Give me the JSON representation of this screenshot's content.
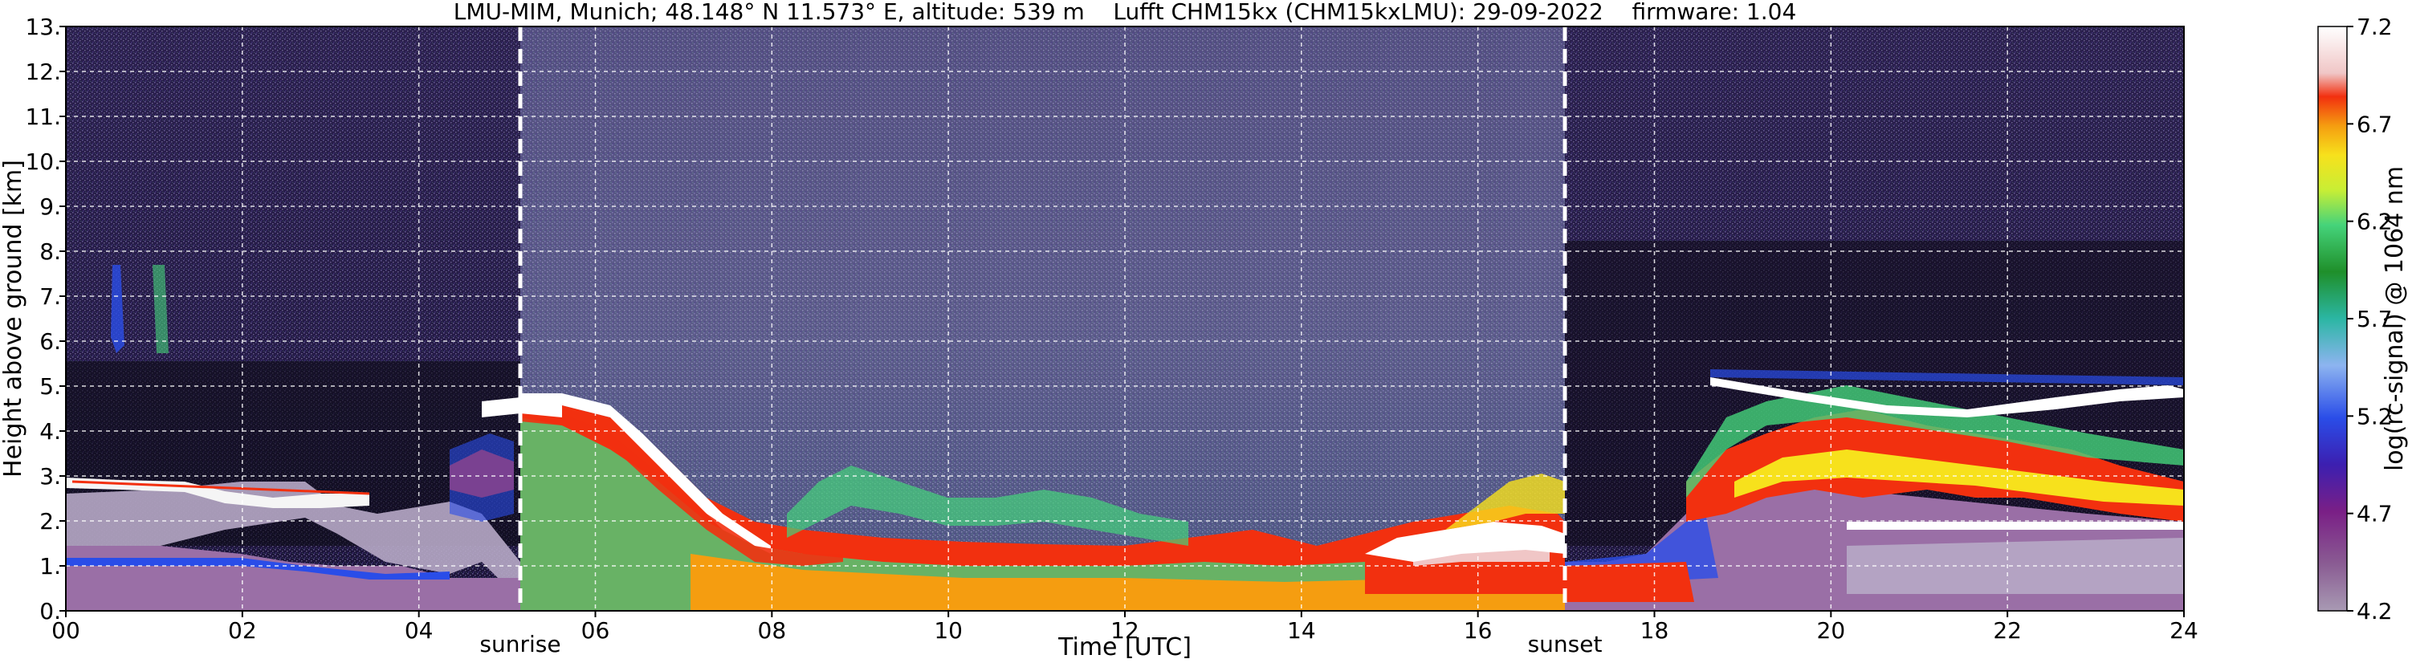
{
  "chart_data": {
    "type": "heatmap",
    "title": "LMU-MIM, Munich; 48.148° N 11.573° E, altitude: 539 m    Lufft CHM15kx (CHM15kxLMU): 29-09-2022    firmware: 1.04",
    "xlabel": "Time [UTC]",
    "ylabel": "Height above ground [km]",
    "xlim": [
      0,
      24
    ],
    "ylim": [
      0,
      13
    ],
    "x_ticks": [
      "00",
      "02",
      "04",
      "06",
      "08",
      "10",
      "12",
      "14",
      "16",
      "18",
      "20",
      "22",
      "24"
    ],
    "y_ticks": [
      "0.",
      "1.",
      "2.",
      "3.",
      "4.",
      "5.",
      "6.",
      "7.",
      "8.",
      "9.",
      "10.",
      "11.",
      "12.",
      "13."
    ],
    "grid": true,
    "colorbar": {
      "label": "log(rc-signal) @ 1064 nm",
      "range": [
        4.2,
        7.2
      ],
      "ticks": [
        "4.2",
        "4.7",
        "5.2",
        "5.7",
        "6.2",
        "6.7",
        "7.2"
      ]
    },
    "annotations": [
      {
        "label": "sunrise",
        "x": 5.15
      },
      {
        "label": "sunset",
        "x": 16.95
      }
    ]
  }
}
